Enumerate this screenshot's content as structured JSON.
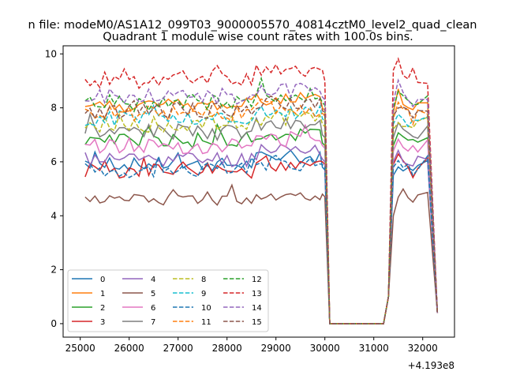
{
  "header": {
    "suptitle": "n file: modeM0/AS1A12_099T03_9000005570_40814cztM0_level2_quad_clean",
    "title": "Quadrant 1 module wise count rates with 100.0s bins.",
    "offset_label": "+4.193e8"
  },
  "chart_data": {
    "type": "line",
    "title": "Quadrant 1 module wise count rates with 100.0s bins.",
    "xlabel": "",
    "ylabel": "",
    "x_offset": 419300000,
    "xlim": [
      24650,
      32650
    ],
    "ylim": [
      -0.5,
      10.3
    ],
    "xticks": [
      25000,
      26000,
      27000,
      28000,
      29000,
      30000,
      31000,
      32000
    ],
    "yticks": [
      0,
      2,
      4,
      6,
      8,
      10
    ],
    "grid": false,
    "legend_position": "lower-left",
    "x_segments": [
      [
        25100,
        29900
      ],
      [
        30000,
        32300
      ]
    ],
    "series": [
      {
        "name": "0",
        "color": "#1f77b4",
        "dash": "solid",
        "level": 5.9,
        "noise": 0.25,
        "active_end": [
          5.8,
          5.7
        ],
        "post_gap": [
          1.0,
          5.5,
          6.0,
          5.8,
          5.7,
          5.6,
          5.8,
          5.9,
          0.4
        ]
      },
      {
        "name": "1",
        "color": "#ff7f0e",
        "dash": "solid",
        "level": 8.1,
        "noise": 0.25,
        "active_end": [
          8.0,
          7.9
        ],
        "post_gap": [
          1.0,
          7.8,
          8.6,
          8.0,
          7.9,
          7.8,
          8.0,
          8.1,
          0.4
        ]
      },
      {
        "name": "2",
        "color": "#2ca02c",
        "dash": "solid",
        "level": 6.8,
        "noise": 0.3,
        "active_end": [
          6.7,
          6.6
        ],
        "post_gap": [
          1.0,
          6.6,
          7.0,
          6.8,
          6.7,
          6.6,
          6.8,
          6.9,
          0.4
        ]
      },
      {
        "name": "3",
        "color": "#d62728",
        "dash": "solid",
        "level": 5.7,
        "noise": 0.3,
        "active_end": [
          6.0,
          5.9
        ],
        "post_gap": [
          1.0,
          5.9,
          6.3,
          6.0,
          5.7,
          5.6,
          5.9,
          6.0,
          0.4
        ]
      },
      {
        "name": "4",
        "color": "#9467bd",
        "dash": "solid",
        "level": 6.1,
        "noise": 0.3,
        "active_end": [
          6.1,
          6.0
        ],
        "post_gap": [
          1.0,
          6.0,
          6.4,
          6.1,
          6.0,
          5.9,
          6.1,
          6.2,
          0.4
        ]
      },
      {
        "name": "5",
        "color": "#8c564b",
        "dash": "solid",
        "level": 4.6,
        "noise": 0.2,
        "active_end": [
          4.8,
          4.7
        ],
        "post_gap": [
          1.0,
          4.0,
          4.7,
          4.9,
          4.8,
          4.6,
          4.7,
          4.9,
          0.4
        ]
      },
      {
        "name": "6",
        "color": "#e377c2",
        "dash": "solid",
        "level": 6.6,
        "noise": 0.3,
        "active_end": [
          6.6,
          6.5
        ],
        "post_gap": [
          1.0,
          6.4,
          6.8,
          6.6,
          6.5,
          6.4,
          6.6,
          6.7,
          0.4
        ]
      },
      {
        "name": "7",
        "color": "#7f7f7f",
        "dash": "solid",
        "level": 7.1,
        "noise": 0.3,
        "active_end": [
          7.0,
          6.9
        ],
        "post_gap": [
          1.0,
          6.9,
          7.3,
          7.1,
          7.0,
          6.9,
          7.1,
          7.2,
          0.4
        ]
      },
      {
        "name": "8",
        "color": "#bcbd22",
        "dash": "dashed",
        "level": 7.4,
        "noise": 0.3,
        "active_end": [
          7.4,
          7.3
        ],
        "post_gap": [
          1.0,
          7.2,
          7.6,
          7.4,
          7.3,
          7.2,
          7.4,
          7.5,
          0.4
        ]
      },
      {
        "name": "9",
        "color": "#17becf",
        "dash": "dashed",
        "level": 7.6,
        "noise": 0.3,
        "active_end": [
          7.6,
          7.5
        ],
        "post_gap": [
          1.0,
          7.4,
          7.8,
          7.6,
          7.5,
          7.4,
          7.6,
          7.7,
          0.4
        ]
      },
      {
        "name": "10",
        "color": "#1f77b4",
        "dash": "dashed",
        "level": 5.7,
        "noise": 0.3,
        "active_end": [
          5.9,
          5.8
        ],
        "post_gap": [
          1.0,
          5.8,
          6.2,
          5.9,
          5.8,
          5.7,
          5.9,
          6.0,
          0.4
        ]
      },
      {
        "name": "11",
        "color": "#ff7f0e",
        "dash": "dashed",
        "level": 7.8,
        "noise": 0.3,
        "active_end": [
          7.8,
          7.7
        ],
        "post_gap": [
          1.0,
          7.6,
          8.0,
          7.8,
          7.7,
          7.6,
          7.8,
          7.9,
          0.4
        ]
      },
      {
        "name": "12",
        "color": "#2ca02c",
        "dash": "dashed",
        "level": 8.2,
        "noise": 0.3,
        "active_end": [
          8.2,
          8.1
        ],
        "post_gap": [
          1.0,
          8.0,
          8.7,
          8.3,
          8.1,
          8.0,
          8.2,
          8.3,
          0.4
        ]
      },
      {
        "name": "13",
        "color": "#d62728",
        "dash": "dashed",
        "level": 9.1,
        "noise": 0.3,
        "active_end": [
          9.4,
          9.0
        ],
        "post_gap": [
          1.0,
          9.4,
          9.7,
          9.2,
          9.0,
          9.3,
          9.0,
          9.1,
          0.4
        ]
      },
      {
        "name": "14",
        "color": "#9467bd",
        "dash": "dashed",
        "level": 8.4,
        "noise": 0.3,
        "active_end": [
          8.4,
          8.3
        ],
        "post_gap": [
          1.0,
          8.2,
          8.9,
          8.5,
          8.3,
          8.2,
          8.4,
          8.5,
          0.4
        ]
      },
      {
        "name": "15",
        "color": "#8c564b",
        "dash": "dashed",
        "level": 7.9,
        "noise": 0.3,
        "active_end": [
          7.9,
          7.8
        ],
        "post_gap": [
          1.0,
          7.7,
          8.1,
          7.9,
          7.8,
          7.7,
          7.9,
          8.0,
          0.4
        ]
      }
    ]
  }
}
